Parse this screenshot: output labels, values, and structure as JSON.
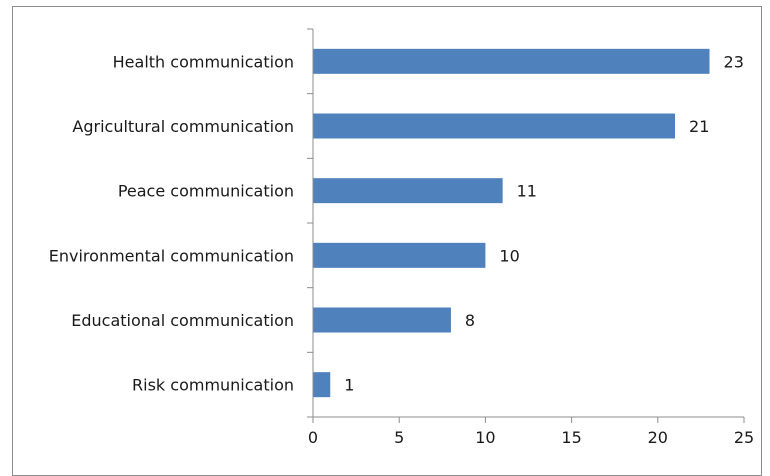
{
  "chart_data": {
    "type": "bar",
    "orientation": "horizontal",
    "categories": [
      "Health communication",
      "Agricultural communication",
      "Peace communication",
      "Environmental communication",
      "Educational communication",
      "Risk communication"
    ],
    "values": [
      23,
      21,
      11,
      10,
      8,
      1
    ],
    "data_labels": [
      "23",
      "21",
      "11",
      "10",
      "8",
      "1"
    ],
    "xlim": [
      0,
      25
    ],
    "x_ticks": [
      0,
      5,
      10,
      15,
      20,
      25
    ],
    "x_tick_labels": [
      "0",
      "5",
      "10",
      "15",
      "20",
      "25"
    ],
    "title": "",
    "xlabel": "",
    "ylabel": "",
    "grid": false,
    "legend": "none",
    "bar_color": "#4f81bd"
  }
}
